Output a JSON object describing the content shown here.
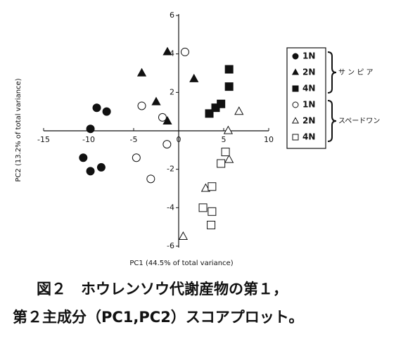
{
  "chart_data": {
    "type": "scatter",
    "x_label": "PC1 (44.5% of total variance)",
    "y_label": "PC2 (13.2% of total variance)",
    "xlim": [
      -15,
      10
    ],
    "xticks": [
      -15,
      -10,
      -5,
      0,
      5,
      10
    ],
    "ylim": [
      -6,
      6
    ],
    "yticks": [
      -6,
      -4,
      -2,
      2,
      4,
      6
    ],
    "legend_groups": [
      "サ ン ピ ア",
      "スペードワン"
    ],
    "caption": [
      "図２　ホウレンソウ代謝産物の第１，",
      "第２主成分（PC1,PC2）スコアプロット。"
    ],
    "series": [
      {
        "name": "1N",
        "marker": "circle",
        "filled": true,
        "color": "#111",
        "x": [
          -9.1,
          -8.0,
          -9.8,
          -10.6,
          -9.8,
          -8.6
        ],
        "values": [
          1.2,
          1.0,
          0.1,
          -1.4,
          -2.1,
          -1.9
        ]
      },
      {
        "name": "2N",
        "marker": "triangle",
        "filled": true,
        "color": "#111",
        "x": [
          -1.25,
          -4.1,
          -2.5,
          -1.25,
          1.7
        ],
        "values": [
          4.1,
          3.0,
          1.5,
          0.5,
          2.7
        ]
      },
      {
        "name": "4N",
        "marker": "square",
        "filled": true,
        "color": "#111",
        "x": [
          5.6,
          5.6,
          3.4,
          4.1,
          4.7
        ],
        "values": [
          3.2,
          2.3,
          0.9,
          1.2,
          1.4
        ]
      },
      {
        "name": "1N",
        "marker": "circle",
        "filled": false,
        "color": "#111",
        "x": [
          0.7,
          -4.1,
          -1.8,
          -4.7,
          -1.3,
          -3.1
        ],
        "values": [
          4.1,
          1.3,
          0.7,
          -1.4,
          -0.7,
          -2.5
        ]
      },
      {
        "name": "2N",
        "marker": "triangle",
        "filled": false,
        "color": "#111",
        "x": [
          6.7,
          5.5,
          5.6,
          3.0,
          0.5
        ],
        "values": [
          1.0,
          0.0,
          -1.5,
          -3.0,
          -5.5
        ]
      },
      {
        "name": "4N",
        "marker": "square",
        "filled": false,
        "color": "#111",
        "x": [
          5.2,
          4.7,
          3.7,
          2.7,
          3.7,
          3.6
        ],
        "values": [
          -1.1,
          -1.7,
          -2.9,
          -4.0,
          -4.2,
          -4.9
        ]
      }
    ]
  }
}
